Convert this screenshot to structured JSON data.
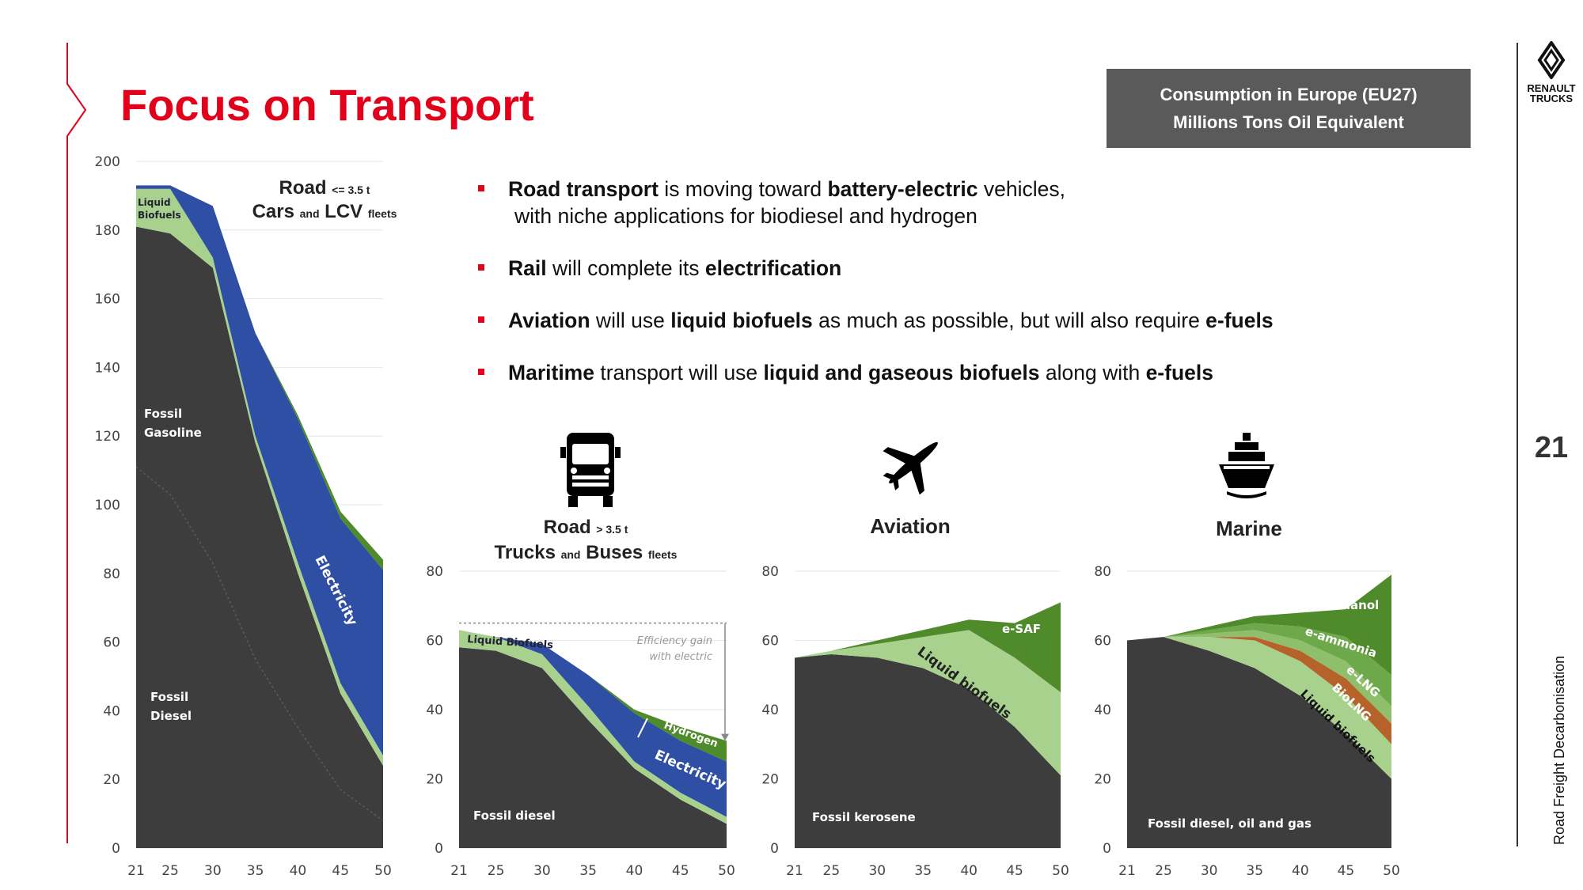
{
  "slide": {
    "title": "Focus on Transport",
    "page_number": "21",
    "side_label": "Road Freight Decarbonisation",
    "info_box": {
      "line1": "Consumption in Europe (EU27)",
      "line2": "Millions Tons Oil Equivalent"
    },
    "logo": {
      "line1": "RENAULT",
      "line2": "TRUCKS"
    }
  },
  "bullets": [
    {
      "segments": [
        {
          "t": "Road transport",
          "b": true
        },
        {
          "t": " is moving toward ",
          "b": false
        },
        {
          "t": "battery-electric",
          "b": true
        },
        {
          "t": " vehicles,",
          "b": false
        }
      ],
      "second_line": "with niche applications for biodiesel and hydrogen"
    },
    {
      "segments": [
        {
          "t": "Rail",
          "b": true
        },
        {
          "t": " will complete its ",
          "b": false
        },
        {
          "t": "electrification",
          "b": true
        }
      ]
    },
    {
      "segments": [
        {
          "t": "Aviation",
          "b": true
        },
        {
          "t": " will use ",
          "b": false
        },
        {
          "t": "liquid biofuels",
          "b": true
        },
        {
          "t": " as much as possible, but will also require ",
          "b": false
        },
        {
          "t": "e-fuels",
          "b": true
        }
      ]
    },
    {
      "segments": [
        {
          "t": "Maritime",
          "b": true
        },
        {
          "t": " transport will use ",
          "b": false
        },
        {
          "t": "liquid and gaseous biofuels",
          "b": true
        },
        {
          "t": " along with ",
          "b": false
        },
        {
          "t": "e-fuels",
          "b": true
        }
      ]
    }
  ],
  "panel_labels": {
    "cars": {
      "road": "Road",
      "road_sub": "<= 3.5 t",
      "cars": "Cars",
      "and": "and",
      "lcv": "LCV",
      "fleets": "fleets"
    },
    "trucks": {
      "road": "Road",
      "road_sub": "> 3.5 t",
      "trucks": "Trucks",
      "and": "and",
      "buses": "Buses",
      "fleets": "fleets"
    },
    "aviation": "Aviation",
    "marine": "Marine"
  },
  "colors": {
    "fossil": "#3d3d3d",
    "biofuel": "#a9d18e",
    "electric": "#2e4fa3",
    "hydrogen": "#4f8a2b",
    "esaf": "#4f8a2b",
    "emethanol": "#4f8a2b",
    "eammonia": "#6da84b",
    "elng": "#8fbf6b",
    "biolng": "#b5632b",
    "accent": "#e2001a",
    "grid": "#e6e6e6",
    "axis_text": "#444444"
  },
  "chart_data": [
    {
      "type": "area",
      "id": "cars",
      "x": [
        21,
        25,
        30,
        35,
        40,
        45,
        50
      ],
      "ylim": [
        0,
        200
      ],
      "yticks": [
        0,
        20,
        40,
        60,
        80,
        100,
        120,
        140,
        160,
        180,
        200
      ],
      "xlabel": "",
      "ylabel": "",
      "series": [
        {
          "name": "Fossil",
          "values": [
            181,
            179,
            169,
            118,
            80,
            45,
            24
          ],
          "color": "fossil",
          "labels": [
            "Fossil Gasoline",
            "Fossil Diesel"
          ]
        },
        {
          "name": "Liquid Biofuels",
          "values": [
            11,
            13,
            3,
            2,
            3,
            3,
            3
          ],
          "color": "biofuel",
          "label": "Liquid Biofuels"
        },
        {
          "name": "Electricity",
          "values": [
            1,
            1,
            15,
            30,
            42,
            48,
            54
          ],
          "color": "electric",
          "label": "Electricity"
        },
        {
          "name": "Hydrogen",
          "values": [
            0,
            0,
            0,
            0,
            1,
            2,
            3
          ],
          "color": "hydrogen"
        }
      ],
      "diesel_boundary": [
        111,
        103,
        83,
        55,
        35,
        17,
        8
      ]
    },
    {
      "type": "area",
      "id": "trucks",
      "x": [
        21,
        25,
        30,
        35,
        40,
        45,
        50
      ],
      "ylim": [
        0,
        80
      ],
      "yticks": [
        0,
        20,
        40,
        60,
        80
      ],
      "series": [
        {
          "name": "Fossil diesel",
          "values": [
            58,
            57,
            52,
            37,
            23,
            14,
            7
          ],
          "color": "fossil",
          "label": "Fossil diesel"
        },
        {
          "name": "Liquid Biofuels",
          "values": [
            5,
            4,
            4,
            4,
            2,
            2,
            2
          ],
          "color": "biofuel",
          "label": "Liquid Biofuels"
        },
        {
          "name": "Electricity",
          "values": [
            0,
            0,
            3,
            9,
            14,
            15,
            16
          ],
          "color": "electric",
          "label": "Electricity"
        },
        {
          "name": "Hydrogen",
          "values": [
            0,
            0,
            0,
            0,
            1,
            4,
            6
          ],
          "color": "hydrogen",
          "label": "Hydrogen"
        }
      ],
      "annotation": "Efficiency gain with electric",
      "reference_level": 65
    },
    {
      "type": "area",
      "id": "aviation",
      "x": [
        21,
        25,
        30,
        35,
        40,
        45,
        50
      ],
      "ylim": [
        0,
        80
      ],
      "yticks": [
        0,
        20,
        40,
        60,
        80
      ],
      "series": [
        {
          "name": "Fossil kerosene",
          "values": [
            55,
            56,
            55,
            52,
            46,
            35,
            21
          ],
          "color": "fossil",
          "label": "Fossil kerosene"
        },
        {
          "name": "Liquid biofuels",
          "values": [
            0,
            1,
            4,
            9,
            17,
            20,
            24
          ],
          "color": "biofuel",
          "label": "Liquid biofuels"
        },
        {
          "name": "e-SAF",
          "values": [
            0,
            0,
            1,
            2,
            3,
            10,
            26
          ],
          "color": "esaf",
          "label": "e-SAF"
        }
      ]
    },
    {
      "type": "area",
      "id": "marine",
      "x": [
        21,
        25,
        30,
        35,
        40,
        45,
        50
      ],
      "ylim": [
        0,
        80
      ],
      "yticks": [
        0,
        20,
        40,
        60,
        80
      ],
      "series": [
        {
          "name": "Fossil diesel, oil and gas",
          "values": [
            60,
            61,
            57,
            52,
            44,
            33,
            20
          ],
          "color": "fossil",
          "label": "Fossil diesel, oil and gas"
        },
        {
          "name": "Liquid biofuels",
          "values": [
            0,
            0,
            4,
            8,
            10,
            11,
            10
          ],
          "color": "biofuel",
          "label": "Liquid biofuels"
        },
        {
          "name": "BioLNG",
          "values": [
            0,
            0,
            0,
            1,
            3,
            5,
            6
          ],
          "color": "biolng",
          "label": "BioLNG"
        },
        {
          "name": "e-LNG",
          "values": [
            0,
            0,
            1,
            2,
            3,
            5,
            5
          ],
          "color": "elng",
          "label": "e-LNG"
        },
        {
          "name": "e-ammonia",
          "values": [
            0,
            0,
            1,
            2,
            4,
            7,
            9
          ],
          "color": "eammonia",
          "label": "e-ammonia"
        },
        {
          "name": "e-methanol",
          "values": [
            0,
            0,
            1,
            2,
            4,
            8,
            29
          ],
          "color": "emethanol",
          "label": "e-methanol"
        }
      ]
    }
  ]
}
